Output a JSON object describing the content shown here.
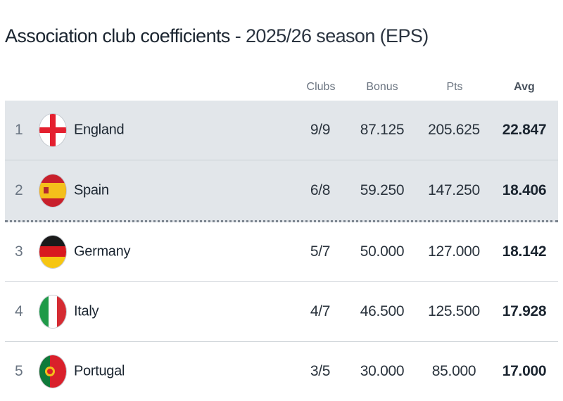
{
  "title": {
    "main": "Association club coefficients",
    "sub": " - 2025/26 season (EPS)"
  },
  "columns": {
    "clubs": "Clubs",
    "bonus": "Bonus",
    "pts": "Pts",
    "avg": "Avg"
  },
  "colors": {
    "highlight_row": "#e2e6ea",
    "text": "#1b2530",
    "muted": "#6b7480"
  },
  "rows": [
    {
      "rank": "1",
      "country": "England",
      "flag": "england-flag-icon",
      "clubs": "9/9",
      "bonus": "87.125",
      "pts": "205.625",
      "avg": "22.847",
      "highlighted": true
    },
    {
      "rank": "2",
      "country": "Spain",
      "flag": "spain-flag-icon",
      "clubs": "6/8",
      "bonus": "59.250",
      "pts": "147.250",
      "avg": "18.406",
      "highlighted": true
    },
    {
      "rank": "3",
      "country": "Germany",
      "flag": "germany-flag-icon",
      "clubs": "5/7",
      "bonus": "50.000",
      "pts": "127.000",
      "avg": "18.142",
      "highlighted": false
    },
    {
      "rank": "4",
      "country": "Italy",
      "flag": "italy-flag-icon",
      "clubs": "4/7",
      "bonus": "46.500",
      "pts": "125.500",
      "avg": "17.928",
      "highlighted": false
    },
    {
      "rank": "5",
      "country": "Portugal",
      "flag": "portugal-flag-icon",
      "clubs": "3/5",
      "bonus": "30.000",
      "pts": "85.000",
      "avg": "17.000",
      "highlighted": false
    }
  ]
}
